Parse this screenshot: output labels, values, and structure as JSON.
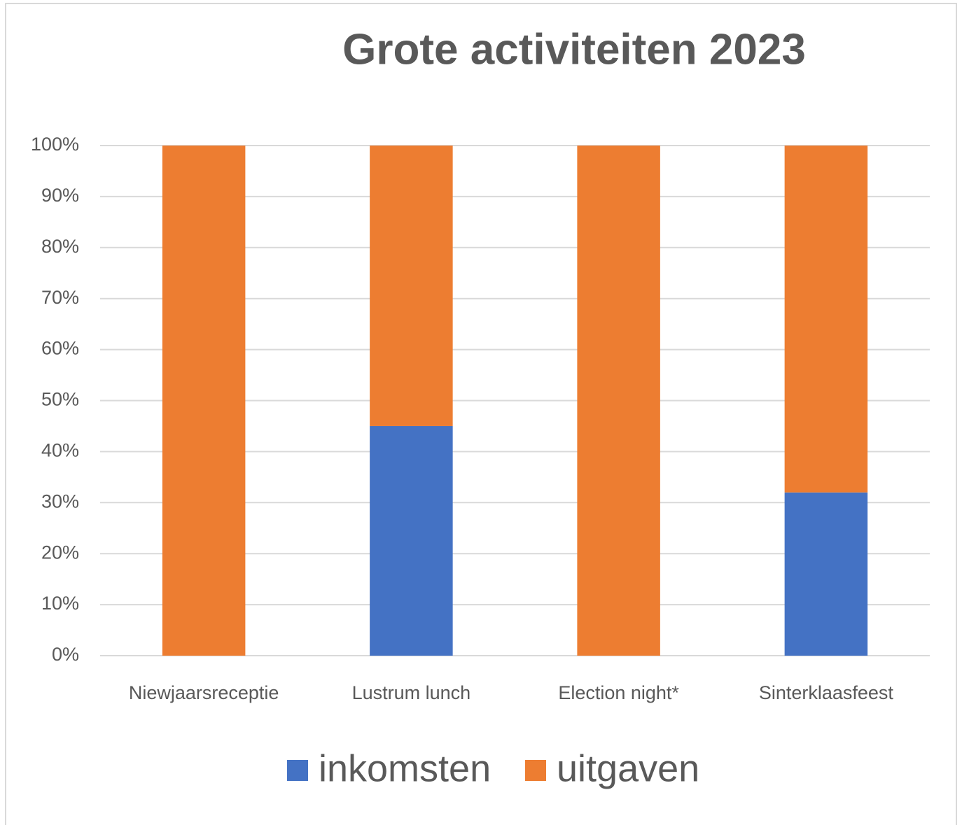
{
  "chart_data": {
    "type": "stacked_bar",
    "title": "Grote activiteiten 2023",
    "categories": [
      "Niewjaarsreceptie",
      "Lustrum lunch",
      "Election night*",
      "Sinterklaasfeest"
    ],
    "series": [
      {
        "name": "inkomsten",
        "color": "#4472c4",
        "values": [
          0,
          45,
          0,
          32
        ]
      },
      {
        "name": "uitgaven",
        "color": "#ed7d31",
        "values": [
          100,
          55,
          100,
          68
        ]
      }
    ],
    "ylim": [
      0,
      100
    ],
    "yticks": [
      {
        "value": 0,
        "label": "0%"
      },
      {
        "value": 10,
        "label": "10%"
      },
      {
        "value": 20,
        "label": "20%"
      },
      {
        "value": 30,
        "label": "30%"
      },
      {
        "value": 40,
        "label": "40%"
      },
      {
        "value": 50,
        "label": "50%"
      },
      {
        "value": 60,
        "label": "60%"
      },
      {
        "value": 70,
        "label": "70%"
      },
      {
        "value": 80,
        "label": "80%"
      },
      {
        "value": 90,
        "label": "90%"
      },
      {
        "value": 100,
        "label": "100%"
      }
    ],
    "grid": true,
    "legend": "bottom"
  }
}
